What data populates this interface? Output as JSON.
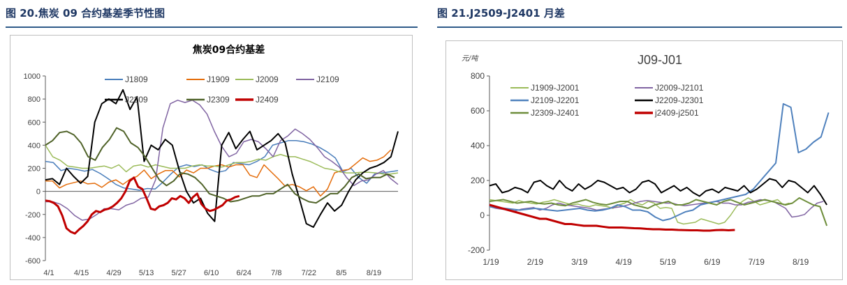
{
  "left_panel": {
    "heading": "图 20.焦炭 09 合约基差季节性图",
    "colors": {
      "accent": "#1f3864"
    }
  },
  "right_panel": {
    "heading": "图 21.J2509-J2401 月差",
    "colors": {
      "accent": "#1f3864"
    }
  },
  "chart_data": [
    {
      "type": "line",
      "title": "焦炭09合约基差",
      "xlabel": "",
      "ylabel": "",
      "ylim": [
        -600,
        1000
      ],
      "yticks": [
        -600,
        -400,
        -200,
        0,
        200,
        400,
        600,
        800,
        1000
      ],
      "xticks": [
        "4/1",
        "4/15",
        "4/29",
        "5/13",
        "5/27",
        "6/10",
        "6/24",
        "7/8",
        "7/22",
        "8/5",
        "8/19"
      ],
      "legend_position": "top",
      "series": [
        {
          "name": "J1809",
          "color": "#4a7ebb",
          "width": 1.5,
          "values": [
            260,
            250,
            180,
            200,
            190,
            175,
            190,
            155,
            110,
            60,
            30,
            20,
            10,
            25,
            20,
            80,
            150,
            210,
            230,
            215,
            230,
            190,
            165,
            180,
            250,
            240,
            230,
            260,
            300,
            400,
            420,
            440,
            440,
            430,
            410,
            380,
            340,
            290,
            170,
            200,
            120,
            70,
            150,
            160,
            170,
            180
          ]
        },
        {
          "name": "J1909",
          "color": "#e46c0a",
          "width": 1.5,
          "values": [
            90,
            90,
            30,
            60,
            75,
            90,
            65,
            70,
            35,
            80,
            100,
            60,
            105,
            130,
            185,
            110,
            150,
            180,
            180,
            125,
            185,
            160,
            200,
            200,
            220,
            230,
            210,
            230,
            230,
            140,
            120,
            230,
            170,
            110,
            45,
            60,
            40,
            5,
            40,
            -40,
            20,
            160,
            180,
            190,
            240,
            290,
            260,
            270,
            300,
            360
          ]
        },
        {
          "name": "J2009",
          "color": "#9bbb59",
          "width": 1.5,
          "values": [
            400,
            300,
            270,
            220,
            210,
            200,
            200,
            210,
            220,
            200,
            230,
            170,
            220,
            230,
            210,
            230,
            215,
            200,
            200,
            200,
            220,
            230,
            220,
            220,
            210,
            230,
            250,
            250,
            260,
            280,
            270,
            300,
            320,
            300,
            300,
            280,
            260,
            230,
            200,
            190,
            170,
            160,
            160,
            165,
            165,
            160,
            150,
            150,
            160
          ]
        },
        {
          "name": "J2109",
          "color": "#8064a2",
          "width": 1.5,
          "values": [
            -90,
            -90,
            -110,
            -150,
            -210,
            -250,
            -240,
            -200,
            -150,
            -150,
            -160,
            -120,
            -100,
            -60,
            -50,
            100,
            550,
            760,
            790,
            770,
            790,
            750,
            670,
            520,
            390,
            300,
            330,
            430,
            450,
            430,
            370,
            300,
            440,
            480,
            540,
            500,
            450,
            380,
            300,
            260,
            210,
            120,
            50,
            90,
            100,
            150,
            180,
            110,
            60
          ]
        },
        {
          "name": "J2209",
          "color": "#000000",
          "width": 2,
          "values": [
            100,
            110,
            60,
            200,
            130,
            70,
            130,
            600,
            760,
            800,
            760,
            880,
            710,
            820,
            260,
            400,
            360,
            450,
            400,
            180,
            0,
            -100,
            -60,
            -190,
            -260,
            400,
            510,
            370,
            450,
            520,
            360,
            400,
            440,
            500,
            420,
            150,
            -60,
            -280,
            -310,
            -200,
            -100,
            -170,
            -120,
            0,
            100,
            160,
            200,
            220,
            250,
            300,
            520
          ]
        },
        {
          "name": "J2309",
          "color": "#4f6228",
          "width": 2,
          "values": [
            400,
            440,
            510,
            520,
            490,
            420,
            300,
            270,
            380,
            450,
            550,
            520,
            420,
            380,
            300,
            200,
            100,
            50,
            90,
            160,
            150,
            120,
            60,
            -20,
            -40,
            -60,
            -90,
            -80,
            -60,
            -40,
            -40,
            -20,
            -20,
            20,
            60,
            -20,
            -60,
            -90,
            -100,
            -60,
            -20,
            -20,
            40,
            120,
            150,
            110,
            120,
            120,
            150,
            120
          ]
        },
        {
          "name": "J2409",
          "color": "#c00000",
          "width": 3,
          "values": [
            -80,
            -85,
            -100,
            -130,
            -210,
            -320,
            -350,
            -365,
            -330,
            -300,
            -260,
            -200,
            -170,
            -180,
            -160,
            -150,
            -130,
            -100,
            -60,
            0,
            90,
            120,
            40,
            20,
            -60,
            -150,
            -160,
            -130,
            -120,
            -100,
            -60,
            -70,
            -40,
            -60,
            -100,
            -50,
            -20,
            -110,
            -150,
            -170,
            -160,
            -140,
            -120,
            -80,
            -70,
            -50,
            -40
          ]
        }
      ]
    },
    {
      "type": "line",
      "title": "J09-J01",
      "ylabel": "元/吨",
      "xlabel": "",
      "ylim": [
        -200,
        800
      ],
      "yticks": [
        -200,
        0,
        200,
        400,
        600,
        800
      ],
      "xticks": [
        "1/19",
        "2/19",
        "3/19",
        "4/19",
        "5/19",
        "6/19",
        "7/19",
        "8/19"
      ],
      "legend_position": "top",
      "series": [
        {
          "name": "J1909-J2001",
          "color": "#9bbb59",
          "width": 1.5,
          "values": [
            90,
            85,
            80,
            75,
            70,
            85,
            75,
            70,
            65,
            75,
            80,
            90,
            80,
            70,
            60,
            65,
            55,
            50,
            60,
            55,
            50,
            40,
            60,
            70,
            90,
            70,
            60,
            80,
            70,
            40,
            45,
            40,
            -40,
            -50,
            -45,
            -40,
            -20,
            -30,
            -40,
            -50,
            -40,
            0,
            50,
            80,
            100,
            80,
            60,
            70,
            80,
            90,
            60,
            70
          ]
        },
        {
          "name": "J2009-J2101",
          "color": "#8064a2",
          "width": 1.5,
          "values": [
            50,
            40,
            35,
            30,
            25,
            35,
            40,
            45,
            30,
            40,
            60,
            70,
            60,
            55,
            50,
            45,
            40,
            30,
            35,
            40,
            45,
            50,
            60,
            70,
            80,
            85,
            80,
            75,
            70,
            70,
            60,
            55,
            60,
            65,
            70,
            75,
            80,
            70,
            70,
            60,
            60,
            75,
            80,
            90,
            85,
            80,
            60,
            40,
            -10,
            -5,
            5,
            40,
            70,
            80
          ]
        },
        {
          "name": "J2109-J2201",
          "color": "#4f81bd",
          "width": 2,
          "values": [
            50,
            45,
            40,
            35,
            30,
            35,
            40,
            35,
            30,
            25,
            30,
            35,
            40,
            30,
            25,
            30,
            40,
            60,
            50,
            30,
            30,
            20,
            -10,
            -30,
            -20,
            0,
            20,
            30,
            60,
            70,
            80,
            90,
            100,
            110,
            120,
            150,
            200,
            250,
            300,
            640,
            620,
            360,
            380,
            420,
            450,
            590
          ]
        },
        {
          "name": "J2209-J2301",
          "color": "#000000",
          "width": 2,
          "values": [
            170,
            180,
            130,
            140,
            160,
            150,
            130,
            190,
            200,
            170,
            150,
            200,
            160,
            140,
            180,
            150,
            170,
            200,
            190,
            170,
            150,
            160,
            130,
            150,
            190,
            200,
            180,
            130,
            150,
            170,
            140,
            160,
            130,
            110,
            140,
            150,
            130,
            160,
            150,
            140,
            170,
            130,
            150,
            180,
            210,
            200,
            160,
            200,
            190,
            160,
            130,
            170,
            120,
            60
          ]
        },
        {
          "name": "J2309-J2401",
          "color": "#6d8d3a",
          "width": 2,
          "values": [
            80,
            85,
            90,
            80,
            70,
            75,
            80,
            70,
            65,
            70,
            60,
            55,
            70,
            80,
            90,
            75,
            65,
            60,
            70,
            80,
            80,
            60,
            50,
            40,
            60,
            70,
            80,
            60,
            60,
            70,
            90,
            80,
            70,
            60,
            80,
            90,
            75,
            60,
            70,
            80,
            90,
            80,
            70,
            60,
            70,
            100,
            80,
            60,
            50,
            -60
          ]
        },
        {
          "name": "j2409-j2501",
          "color": "#c00000",
          "width": 3,
          "values": [
            60,
            50,
            40,
            30,
            20,
            10,
            0,
            -10,
            -20,
            -20,
            -30,
            -40,
            -50,
            -50,
            -55,
            -60,
            -60,
            -60,
            -65,
            -70,
            -70,
            -70,
            -72,
            -74,
            -75,
            -78,
            -80,
            -80,
            -82,
            -82,
            -84,
            -85,
            -86,
            -86,
            -88,
            -88,
            -85,
            -84,
            -86,
            -84
          ]
        }
      ]
    }
  ]
}
